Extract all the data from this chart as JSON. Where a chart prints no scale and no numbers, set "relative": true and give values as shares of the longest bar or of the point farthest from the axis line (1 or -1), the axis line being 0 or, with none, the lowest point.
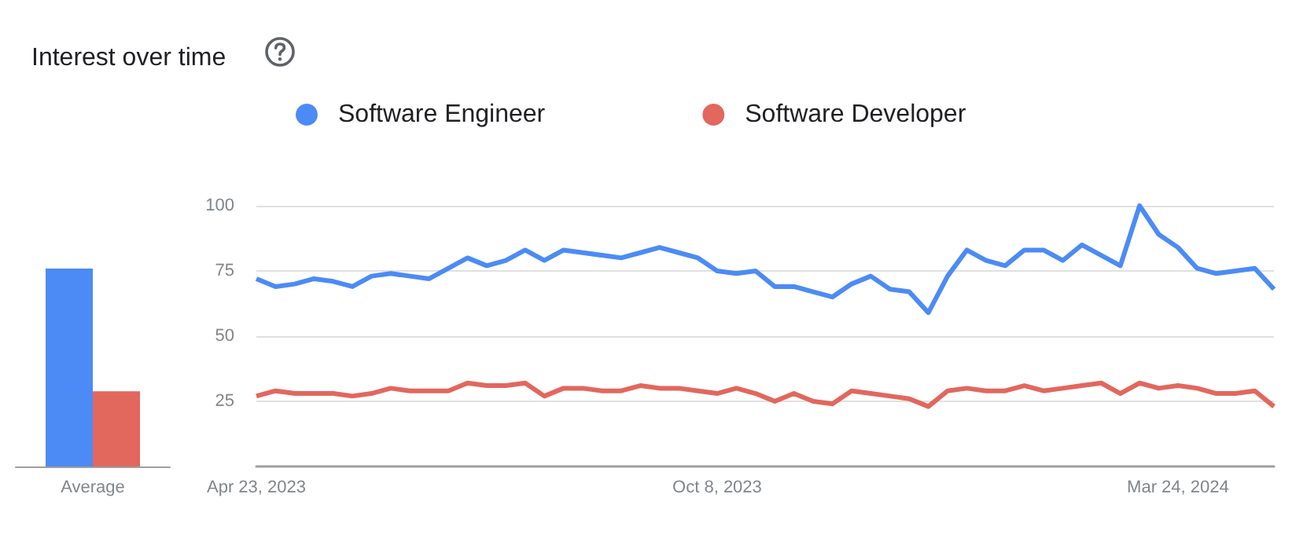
{
  "chart_data": [
    {
      "type": "bar",
      "title": "Interest over time",
      "relative": true,
      "categories": [
        "Average"
      ],
      "series": [
        {
          "color": "#4c8bf5",
          "values": [
            1
          ]
        },
        {
          "color": "#e2675d",
          "values": [
            0.38
          ]
        }
      ]
    },
    {
      "type": "line",
      "legend": "top",
      "grid": "y",
      "x": [
        "2023-04-23",
        "2023-04-30",
        "2023-05-07",
        "2023-05-14",
        "2023-05-21",
        "2023-05-28",
        "2023-06-04",
        "2023-06-11",
        "2023-06-18",
        "2023-06-25",
        "2023-07-02",
        "2023-07-09",
        "2023-07-16",
        "2023-07-23",
        "2023-07-30",
        "2023-08-06",
        "2023-08-13",
        "2023-08-20",
        "2023-08-27",
        "2023-09-03",
        "2023-09-10",
        "2023-09-17",
        "2023-09-24",
        "2023-10-01",
        "2023-10-08",
        "2023-10-15",
        "2023-10-22",
        "2023-10-29",
        "2023-11-05",
        "2023-11-12",
        "2023-11-19",
        "2023-11-26",
        "2023-12-03",
        "2023-12-10",
        "2023-12-17",
        "2023-12-24",
        "2023-12-31",
        "2024-01-07",
        "2024-01-14",
        "2024-01-21",
        "2024-01-28",
        "2024-02-04",
        "2024-02-11",
        "2024-02-18",
        "2024-02-25",
        "2024-03-03",
        "2024-03-10",
        "2024-03-17",
        "2024-03-24",
        "2024-03-31",
        "2024-04-07",
        "2024-04-14",
        "2024-04-21",
        "2024-04-28"
      ],
      "xlim": [
        "2023-04-23",
        "2024-04-28"
      ],
      "xticks": [
        {
          "value": "2023-04-23",
          "label": "Apr 23, 2023"
        },
        {
          "value": "2023-10-08",
          "label": "Oct 8, 2023"
        },
        {
          "value": "2024-03-24",
          "label": "Mar 24, 2024"
        }
      ],
      "ylim": [
        0,
        100
      ],
      "yticks": [
        25,
        50,
        75,
        100
      ],
      "series": [
        {
          "name": "Software Engineer",
          "color": "#4c8bf5",
          "values": [
            72,
            69,
            70,
            72,
            71,
            69,
            73,
            74,
            73,
            72,
            76,
            80,
            77,
            79,
            83,
            79,
            83,
            82,
            81,
            80,
            82,
            84,
            82,
            80,
            75,
            74,
            75,
            69,
            69,
            67,
            65,
            70,
            73,
            68,
            67,
            59,
            73,
            83,
            79,
            77,
            83,
            83,
            79,
            85,
            81,
            77,
            100,
            89,
            84,
            76,
            74,
            75,
            76,
            68
          ]
        },
        {
          "name": "Software Developer",
          "color": "#e2675d",
          "values": [
            27,
            29,
            28,
            28,
            28,
            27,
            28,
            30,
            29,
            29,
            29,
            32,
            31,
            31,
            32,
            27,
            30,
            30,
            29,
            29,
            31,
            30,
            30,
            29,
            28,
            30,
            28,
            25,
            28,
            25,
            24,
            29,
            28,
            27,
            26,
            23,
            29,
            30,
            29,
            29,
            31,
            29,
            30,
            31,
            32,
            28,
            32,
            30,
            31,
            30,
            28,
            28,
            29,
            23
          ]
        }
      ]
    }
  ]
}
